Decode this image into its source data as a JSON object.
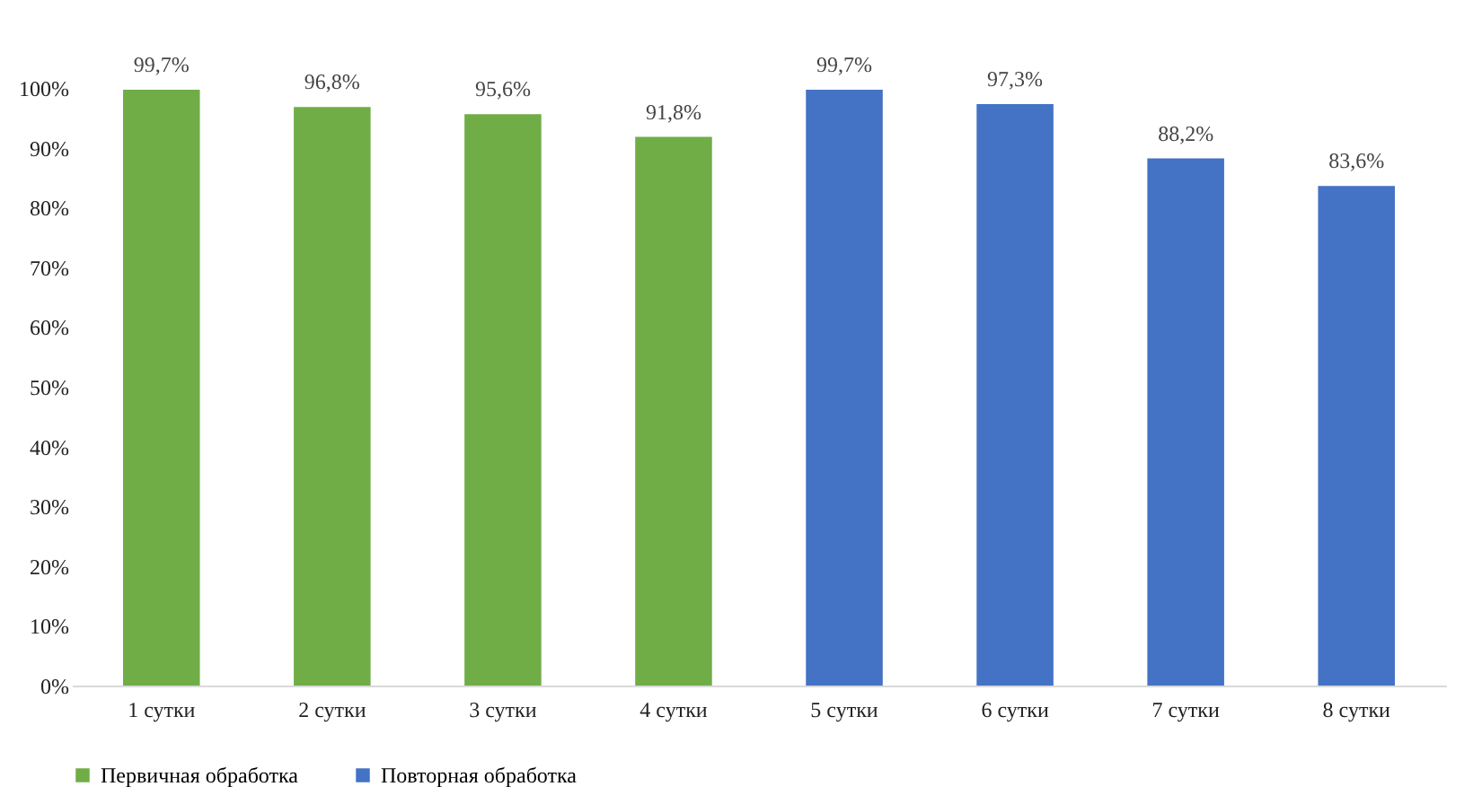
{
  "chart_data": {
    "type": "bar",
    "categories": [
      "1 сутки",
      "2 сутки",
      "3 сутки",
      "4 сутки",
      "5 сутки",
      "6 сутки",
      "7 сутки",
      "8 сутки"
    ],
    "series": [
      {
        "name": "Первичная обработка",
        "color": "#70ad47",
        "values": [
          99.7,
          96.8,
          95.6,
          91.8,
          null,
          null,
          null,
          null
        ],
        "value_labels": [
          "99,7%",
          "96,8%",
          "95,6%",
          "91,8%",
          null,
          null,
          null,
          null
        ]
      },
      {
        "name": "Повторная обработка",
        "color": "#4472c4",
        "values": [
          null,
          null,
          null,
          null,
          99.7,
          97.3,
          88.2,
          83.6
        ],
        "value_labels": [
          null,
          null,
          null,
          null,
          "99,7%",
          "97,3%",
          "88,2%",
          "83,6%"
        ]
      }
    ],
    "ylim": [
      0,
      100
    ],
    "yticks": [
      {
        "value": 0,
        "label": "0%"
      },
      {
        "value": 10,
        "label": "10%"
      },
      {
        "value": 20,
        "label": "20%"
      },
      {
        "value": 30,
        "label": "30%"
      },
      {
        "value": 40,
        "label": "40%"
      },
      {
        "value": 50,
        "label": "50%"
      },
      {
        "value": 60,
        "label": "60%"
      },
      {
        "value": 70,
        "label": "70%"
      },
      {
        "value": 80,
        "label": "80%"
      },
      {
        "value": 90,
        "label": "90%"
      },
      {
        "value": 100,
        "label": "100%"
      }
    ],
    "grid": false,
    "legend": "bottom"
  }
}
